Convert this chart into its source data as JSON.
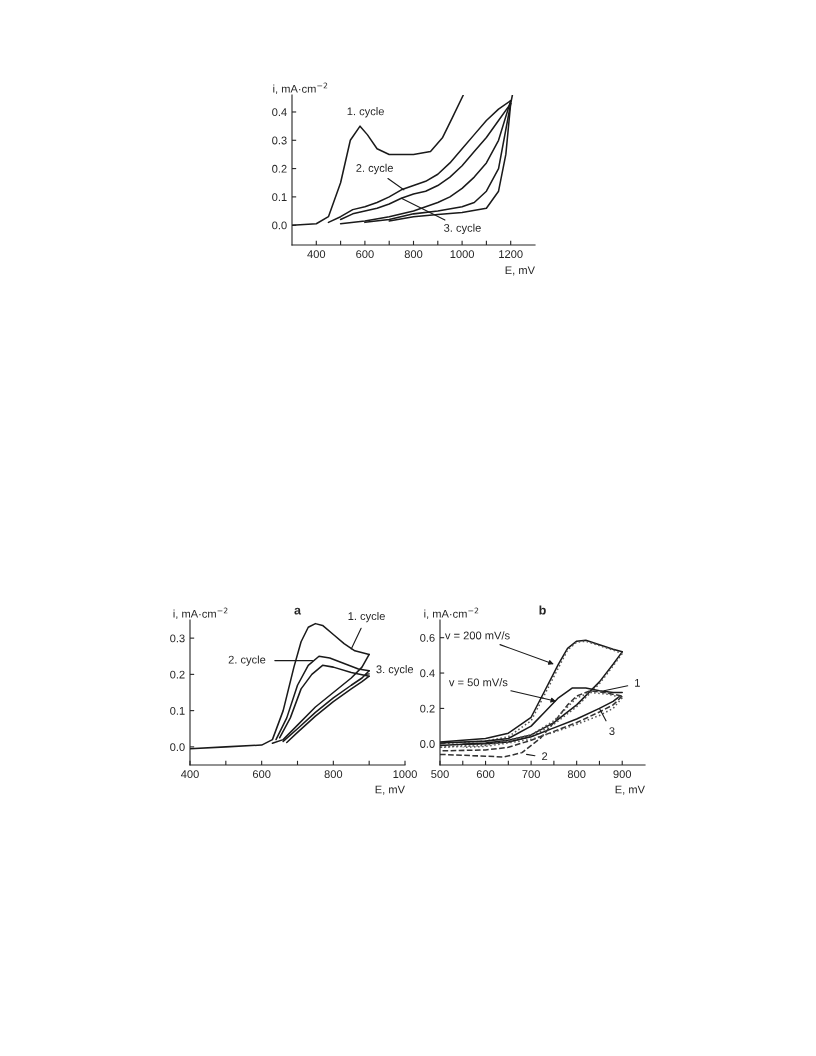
{
  "chart_data": [
    {
      "type": "line",
      "xlabel": "E, mV",
      "ylabel": "i, mA·cm$^{−2}$",
      "xlim": [
        300,
        1300
      ],
      "ylim": [
        -0.07,
        0.46
      ],
      "xticks": [
        400,
        {
          "value": 500,
          "label": null
        },
        600,
        {
          "value": 700,
          "label": null
        },
        800,
        {
          "value": 900,
          "label": null
        },
        1000,
        {
          "value": 1100,
          "label": null
        },
        1200
      ],
      "yticks": [
        {
          "value": 0,
          "label": "0.0"
        },
        {
          "value": 0.1,
          "label": "0.1"
        },
        {
          "value": 0.2,
          "label": "0.2"
        },
        {
          "value": 0.3,
          "label": "0.3"
        },
        {
          "value": 0.4,
          "label": "0.4"
        }
      ],
      "grid": false,
      "legend": false,
      "marker": "none",
      "series": [
        {
          "color": "#1a1a1a",
          "line_style": "solid",
          "x": [
            300,
            400,
            450,
            500,
            540,
            580,
            610,
            650,
            700,
            800,
            870,
            920,
            960,
            1005
          ],
          "values": [
            0,
            0.005,
            0.03,
            0.15,
            0.3,
            0.35,
            0.32,
            0.27,
            0.25,
            0.25,
            0.26,
            0.31,
            0.38,
            0.46
          ]
        },
        {
          "color": "#1a1a1a",
          "line_style": "solid",
          "x": [
            450,
            500,
            550,
            600,
            650,
            700,
            750,
            800,
            850,
            900,
            950,
            1000,
            1050,
            1100,
            1150,
            1200
          ],
          "values": [
            0.01,
            0.03,
            0.055,
            0.065,
            0.08,
            0.1,
            0.125,
            0.14,
            0.155,
            0.18,
            0.22,
            0.27,
            0.32,
            0.37,
            0.41,
            0.44
          ]
        },
        {
          "color": "#1a1a1a",
          "line_style": "solid",
          "x": [
            1200,
            1150,
            1100,
            1050,
            1000,
            950,
            900,
            850,
            800,
            700,
            600,
            500
          ],
          "values": [
            0.44,
            0.3,
            0.22,
            0.17,
            0.13,
            0.1,
            0.08,
            0.065,
            0.05,
            0.03,
            0.015,
            0.005
          ]
        },
        {
          "color": "#1a1a1a",
          "line_style": "solid",
          "x": [
            500,
            550,
            600,
            650,
            700,
            750,
            800,
            850,
            900,
            950,
            1000,
            1050,
            1100,
            1150,
            1200
          ],
          "values": [
            0.02,
            0.04,
            0.05,
            0.06,
            0.075,
            0.095,
            0.11,
            0.12,
            0.14,
            0.17,
            0.21,
            0.26,
            0.31,
            0.37,
            0.43
          ]
        },
        {
          "color": "#1a1a1a",
          "line_style": "solid",
          "x": [
            1200,
            1150,
            1100,
            1050,
            1000,
            900,
            800,
            700,
            600
          ],
          "values": [
            0.43,
            0.2,
            0.12,
            0.08,
            0.065,
            0.05,
            0.04,
            0.02,
            0.01
          ]
        },
        {
          "color": "#1a1a1a",
          "line_style": "solid",
          "x": [
            700,
            800,
            900,
            1000,
            1100,
            1150,
            1180,
            1200,
            1207
          ],
          "values": [
            0.015,
            0.03,
            0.038,
            0.045,
            0.06,
            0.12,
            0.25,
            0.43,
            0.46
          ]
        }
      ],
      "annotations": [
        {
          "text": "1. cycle",
          "x": 580,
          "y": 0.35
        },
        {
          "text": "2. cycle",
          "x": 760,
          "y": 0.125
        },
        {
          "text": "3. cycle",
          "x": 750,
          "y": 0.095
        }
      ]
    },
    {
      "type": "line",
      "title": "a",
      "xlabel": "E, mV",
      "ylabel": "i, mA·cm$^{−2}$",
      "xlim": [
        400,
        1000
      ],
      "ylim": [
        -0.05,
        0.35
      ],
      "xticks": [
        400,
        {
          "value": 500,
          "label": null
        },
        600,
        {
          "value": 700,
          "label": null
        },
        800,
        {
          "value": 900,
          "label": null
        },
        1000
      ],
      "yticks": [
        {
          "value": 0,
          "label": "0.0"
        },
        {
          "value": 0.1,
          "label": "0.1"
        },
        {
          "value": 0.2,
          "label": "0.2"
        },
        {
          "value": 0.3,
          "label": "0.3"
        }
      ],
      "grid": false,
      "legend": false,
      "marker": "none",
      "series": [
        {
          "color": "#1a1a1a",
          "line_style": "solid",
          "x": [
            400,
            500,
            600,
            630,
            660,
            690,
            710,
            730,
            750,
            770,
            800,
            830,
            860,
            900
          ],
          "values": [
            -0.005,
            0,
            0.005,
            0.02,
            0.1,
            0.22,
            0.29,
            0.33,
            0.34,
            0.335,
            0.31,
            0.285,
            0.265,
            0.255
          ]
        },
        {
          "color": "#1a1a1a",
          "line_style": "solid",
          "x": [
            900,
            880,
            850,
            800,
            750,
            700,
            660,
            630
          ],
          "values": [
            0.255,
            0.22,
            0.19,
            0.15,
            0.11,
            0.06,
            0.02,
            0.01
          ]
        },
        {
          "color": "#1a1a1a",
          "line_style": "solid",
          "x": [
            640,
            670,
            700,
            730,
            760,
            790,
            830,
            870,
            900
          ],
          "values": [
            0.02,
            0.08,
            0.17,
            0.225,
            0.25,
            0.245,
            0.23,
            0.215,
            0.21
          ]
        },
        {
          "color": "#1a1a1a",
          "line_style": "solid",
          "x": [
            900,
            880,
            850,
            800,
            750,
            700,
            660
          ],
          "values": [
            0.21,
            0.19,
            0.17,
            0.135,
            0.095,
            0.05,
            0.015
          ]
        },
        {
          "color": "#1a1a1a",
          "line_style": "solid",
          "x": [
            650,
            680,
            710,
            740,
            770,
            800,
            850,
            900
          ],
          "values": [
            0.025,
            0.08,
            0.16,
            0.2,
            0.225,
            0.22,
            0.205,
            0.195
          ]
        },
        {
          "color": "#1a1a1a",
          "line_style": "solid",
          "x": [
            900,
            880,
            850,
            800,
            750,
            700,
            670
          ],
          "values": [
            0.195,
            0.18,
            0.16,
            0.125,
            0.085,
            0.04,
            0.012
          ]
        }
      ],
      "annotations": [
        {
          "text": "1. cycle",
          "x": 850,
          "y": 0.27
        },
        "2. cycle",
        {
          "text": "3. cycle",
          "x": 890,
          "y": 0.2
        }
      ]
    },
    {
      "type": "line",
      "title": "b",
      "xlabel": "E, mV",
      "ylabel": "i, mA·cm$^{−2}$",
      "xlim": [
        500,
        950
      ],
      "ylim": [
        -0.12,
        0.7
      ],
      "xticks": [
        500,
        {
          "value": 550,
          "label": null
        },
        600,
        {
          "value": 650,
          "label": null
        },
        700,
        {
          "value": 750,
          "label": null
        },
        800,
        {
          "value": 850,
          "label": null
        },
        900
      ],
      "yticks": [
        {
          "value": 0,
          "label": "0.0"
        },
        {
          "value": 0.2,
          "label": "0.2"
        },
        {
          "value": 0.4,
          "label": "0.4"
        },
        {
          "value": 0.6,
          "label": "0.6"
        }
      ],
      "grid": false,
      "legend": false,
      "marker": "none",
      "series": [
        {
          "color": "#1a1a1a",
          "line_style": "solid",
          "x": [
            500,
            600,
            650,
            700,
            730,
            760,
            780,
            800,
            820,
            850,
            880,
            900
          ],
          "values": [
            0.01,
            0.03,
            0.06,
            0.15,
            0.3,
            0.45,
            0.54,
            0.58,
            0.585,
            0.56,
            0.535,
            0.52
          ]
        },
        {
          "color": "#1a1a1a",
          "line_style": "solid",
          "x": [
            900,
            880,
            850,
            800,
            750,
            700,
            650,
            600,
            500
          ],
          "values": [
            0.52,
            0.45,
            0.35,
            0.22,
            0.12,
            0.05,
            0.02,
            0.005,
            -0.01
          ]
        },
        {
          "color": "#555555",
          "line_style": "dotted",
          "x": [
            500,
            600,
            650,
            700,
            730,
            760,
            780,
            800,
            820,
            850,
            880,
            900
          ],
          "values": [
            0.0,
            0.015,
            0.04,
            0.13,
            0.28,
            0.43,
            0.53,
            0.575,
            0.58,
            0.555,
            0.53,
            0.51
          ]
        },
        {
          "color": "#555555",
          "line_style": "dotted",
          "x": [
            900,
            880,
            850,
            800,
            750,
            700,
            650,
            600,
            500
          ],
          "values": [
            0.51,
            0.44,
            0.34,
            0.21,
            0.11,
            0.04,
            0.01,
            0,
            -0.02
          ]
        },
        {
          "color": "#1a1a1a",
          "line_style": "solid",
          "x": [
            500,
            600,
            650,
            700,
            730,
            760,
            790,
            820,
            850,
            880,
            900
          ],
          "values": [
            0.005,
            0.015,
            0.03,
            0.1,
            0.18,
            0.26,
            0.315,
            0.315,
            0.3,
            0.29,
            0.29
          ]
        },
        {
          "color": "#1a1a1a",
          "line_style": "solid",
          "x": [
            895,
            880,
            850,
            800,
            750,
            700,
            650,
            600,
            550
          ],
          "values": [
            0.27,
            0.24,
            0.2,
            0.14,
            0.09,
            0.04,
            0.01,
            0,
            -0.003
          ]
        },
        {
          "color": "#333333",
          "line_style": "dashed",
          "x": [
            500,
            600,
            640,
            680,
            720,
            750,
            780,
            800,
            830,
            860,
            900
          ],
          "values": [
            -0.06,
            -0.07,
            -0.075,
            -0.05,
            0.03,
            0.12,
            0.22,
            0.27,
            0.3,
            0.29,
            0.27
          ]
        },
        {
          "color": "#333333",
          "line_style": "dashed",
          "x": [
            900,
            880,
            850,
            800,
            750,
            700,
            650,
            600,
            500
          ],
          "values": [
            0.27,
            0.22,
            0.18,
            0.12,
            0.07,
            0.02,
            -0.02,
            -0.035,
            -0.04
          ]
        },
        {
          "color": "#555555",
          "line_style": "dotted",
          "x": [
            500,
            600,
            700,
            750,
            800,
            830,
            870,
            900
          ],
          "values": [
            -0.02,
            -0.01,
            0.05,
            0.13,
            0.26,
            0.29,
            0.28,
            0.26
          ]
        },
        {
          "color": "#555555",
          "line_style": "dotted",
          "x": [
            900,
            880,
            850,
            800,
            750,
            700,
            600,
            550
          ],
          "values": [
            0.26,
            0.2,
            0.16,
            0.11,
            0.065,
            0.025,
            -0.015,
            -0.02
          ]
        }
      ],
      "annotations": [
        {
          "text": "v = 200 mV/s",
          "x": 750,
          "y": 0.45
        },
        {
          "text": "v = 50 mV/s",
          "x": 755,
          "y": 0.24
        },
        {
          "text": "1",
          "x": 860,
          "y": 0.3
        },
        {
          "text": "2",
          "x": 690,
          "y": -0.06
        },
        {
          "text": "3",
          "x": 850,
          "y": 0.2
        }
      ]
    }
  ]
}
